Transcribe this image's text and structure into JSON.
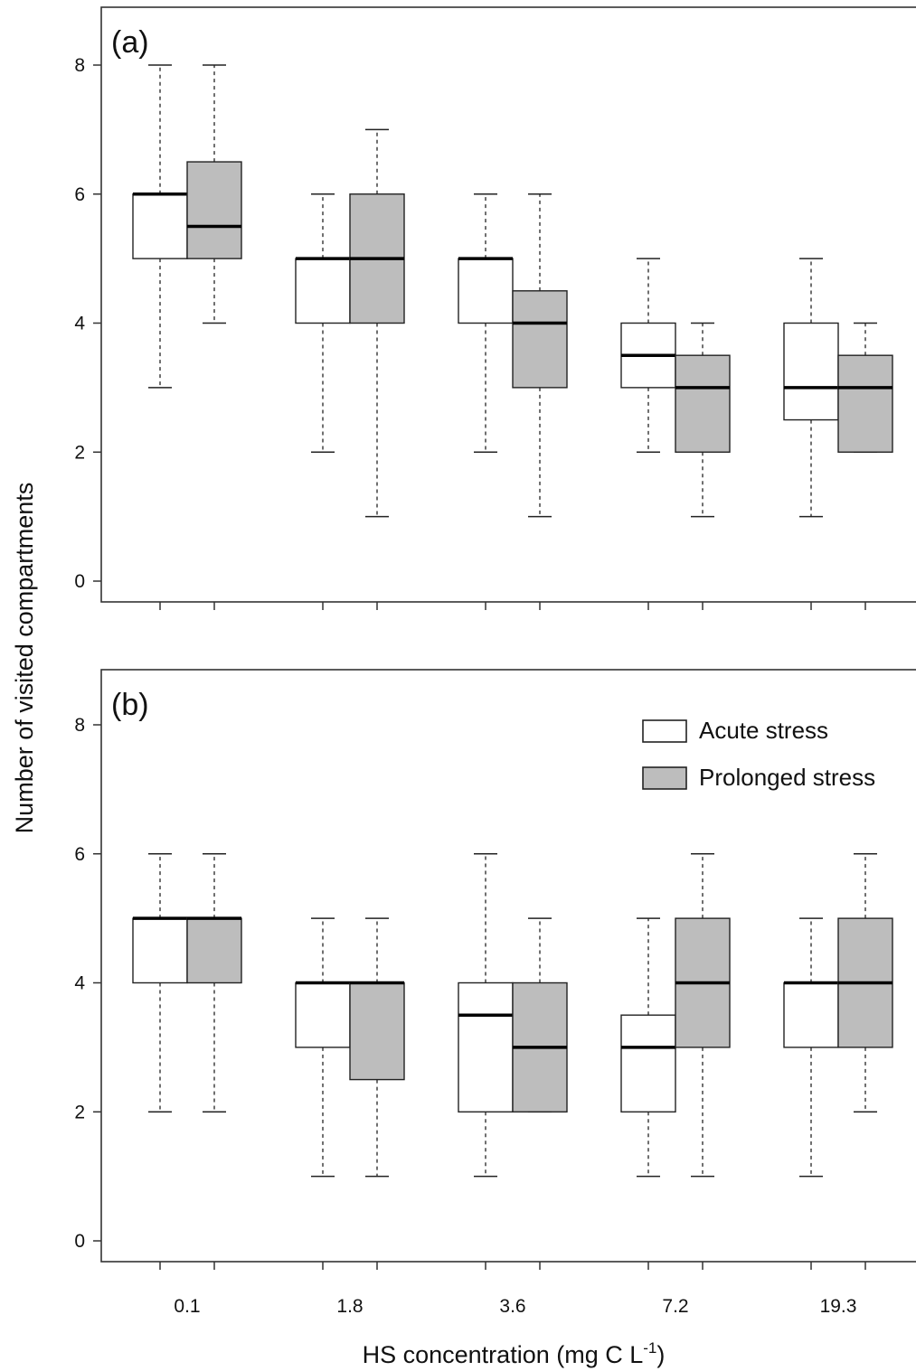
{
  "chart_data": {
    "type": "boxplot",
    "xlabel": "HS concentration (mg C L",
    "xlabel_superscript": "-1",
    "xlabel_close": ")",
    "ylabel": "Number of visited compartments",
    "categories": [
      "0.1",
      "1.8",
      "3.6",
      "7.2",
      "19.3"
    ],
    "yticks": [
      "0",
      "2",
      "4",
      "6",
      "8"
    ],
    "ylim": [
      0,
      8.5
    ],
    "legend": {
      "position": "top-right of panel (b)",
      "entries": [
        {
          "name": "Acute stress",
          "color": "#ffffff"
        },
        {
          "name": "Prolonged stress",
          "color": "#bdbdbd"
        }
      ]
    },
    "colors": {
      "acute": "#ffffff",
      "prolonged": "#bdbdbd",
      "line": "#222222"
    },
    "panels": [
      {
        "label": "(a)",
        "series": [
          {
            "name": "Acute stress",
            "boxes": [
              {
                "min": 3,
                "q1": 5,
                "median": 6,
                "q3": 6,
                "max": 8
              },
              {
                "min": 2,
                "q1": 4,
                "median": 5,
                "q3": 5,
                "max": 6
              },
              {
                "min": 2,
                "q1": 4,
                "median": 5,
                "q3": 5,
                "max": 6
              },
              {
                "min": 2,
                "q1": 3,
                "median": 3.5,
                "q3": 4,
                "max": 5
              },
              {
                "min": 1,
                "q1": 2.5,
                "median": 3,
                "q3": 4,
                "max": 5
              }
            ]
          },
          {
            "name": "Prolonged stress",
            "boxes": [
              {
                "min": 4,
                "q1": 5,
                "median": 5.5,
                "q3": 6.5,
                "max": 8
              },
              {
                "min": 1,
                "q1": 4,
                "median": 5,
                "q3": 6,
                "max": 7
              },
              {
                "min": 1,
                "q1": 3,
                "median": 4,
                "q3": 4.5,
                "max": 6
              },
              {
                "min": 1,
                "q1": 2,
                "median": 3,
                "q3": 3.5,
                "max": 4
              },
              {
                "min": 2,
                "q1": 2,
                "median": 3,
                "q3": 3.5,
                "max": 4
              }
            ]
          }
        ]
      },
      {
        "label": "(b)",
        "series": [
          {
            "name": "Acute stress",
            "boxes": [
              {
                "min": 2,
                "q1": 4,
                "median": 5,
                "q3": 5,
                "max": 6
              },
              {
                "min": 1,
                "q1": 3,
                "median": 4,
                "q3": 4,
                "max": 5
              },
              {
                "min": 1,
                "q1": 2,
                "median": 3.5,
                "q3": 4,
                "max": 6
              },
              {
                "min": 1,
                "q1": 2,
                "median": 3,
                "q3": 3.5,
                "max": 5
              },
              {
                "min": 1,
                "q1": 3,
                "median": 4,
                "q3": 4,
                "max": 5
              }
            ]
          },
          {
            "name": "Prolonged stress",
            "boxes": [
              {
                "min": 2,
                "q1": 4,
                "median": 5,
                "q3": 5,
                "max": 6
              },
              {
                "min": 1,
                "q1": 2.5,
                "median": 4,
                "q3": 4,
                "max": 5
              },
              {
                "min": 2,
                "q1": 2,
                "median": 3,
                "q3": 4,
                "max": 5
              },
              {
                "min": 1,
                "q1": 3,
                "median": 4,
                "q3": 5,
                "max": 6
              },
              {
                "min": 2,
                "q1": 3,
                "median": 4,
                "q3": 5,
                "max": 6
              }
            ]
          }
        ]
      }
    ]
  }
}
